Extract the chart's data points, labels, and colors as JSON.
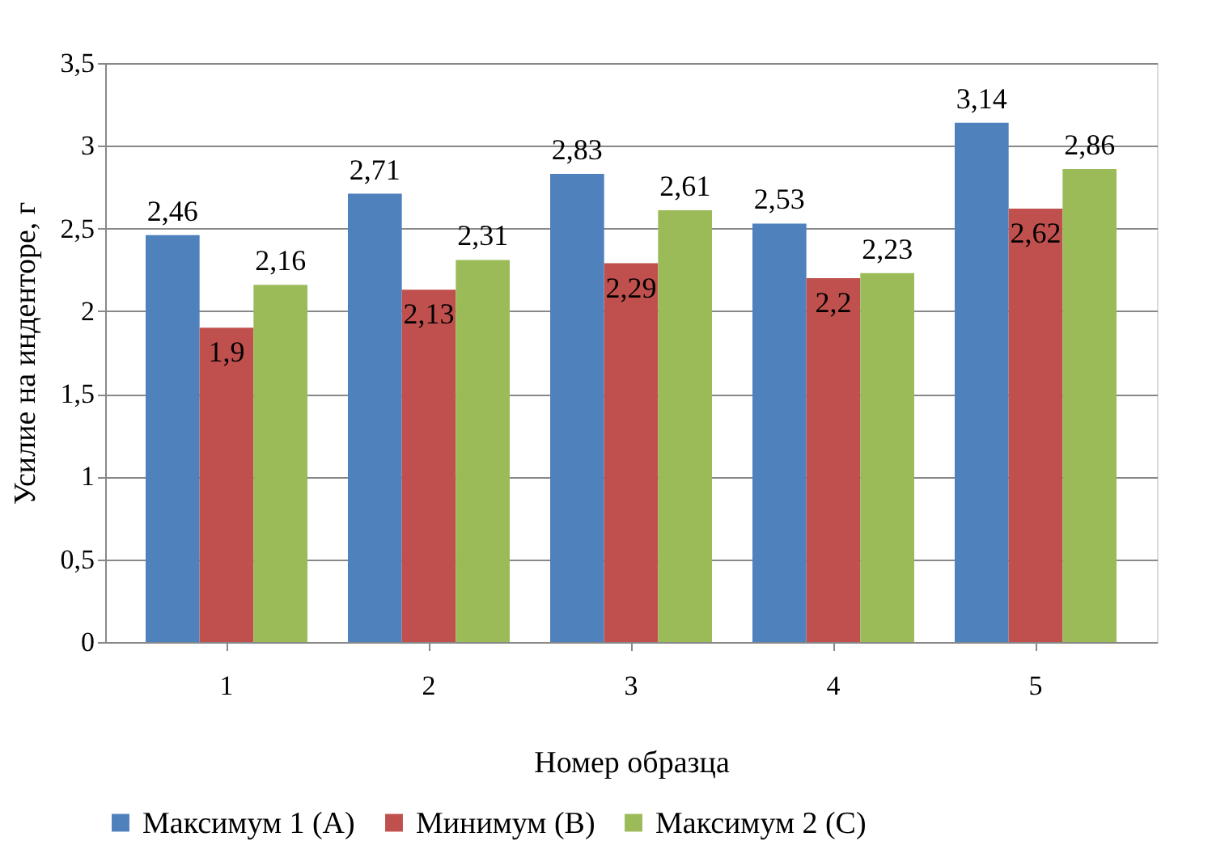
{
  "chart_data": {
    "type": "bar",
    "xlabel": "Номер образца",
    "ylabel": "Усилие на инденторе, г",
    "categories": [
      "1",
      "2",
      "3",
      "4",
      "5"
    ],
    "series": [
      {
        "name": "Максимум 1 (A)",
        "color": "#4f81bd",
        "values": [
          2.46,
          2.71,
          2.83,
          2.53,
          3.14
        ],
        "value_labels": [
          "2,46",
          "2,71",
          "2,83",
          "2,53",
          "3,14"
        ]
      },
      {
        "name": "Минимум (B)",
        "color": "#c0504d",
        "values": [
          1.9,
          2.13,
          2.29,
          2.2,
          2.62
        ],
        "value_labels": [
          "1,9",
          "2,13",
          "2,29",
          "2,2",
          "2,62"
        ]
      },
      {
        "name": "Максимум 2 (C)",
        "color": "#9bbb59",
        "values": [
          2.16,
          2.31,
          2.61,
          2.23,
          2.86
        ],
        "value_labels": [
          "2,16",
          "2,31",
          "2,61",
          "2,23",
          "2,86"
        ]
      }
    ],
    "ylim": [
      0,
      3.5
    ],
    "yticks": [
      0,
      {
        "value": 0.5,
        "label": "0,5"
      },
      1,
      {
        "value": 1.5,
        "label": "1,5"
      },
      2,
      {
        "value": 2.5,
        "label": "2,5"
      },
      3,
      {
        "value": 3.5,
        "label": "3,5"
      }
    ],
    "grid": "y",
    "legend": "bottom"
  }
}
